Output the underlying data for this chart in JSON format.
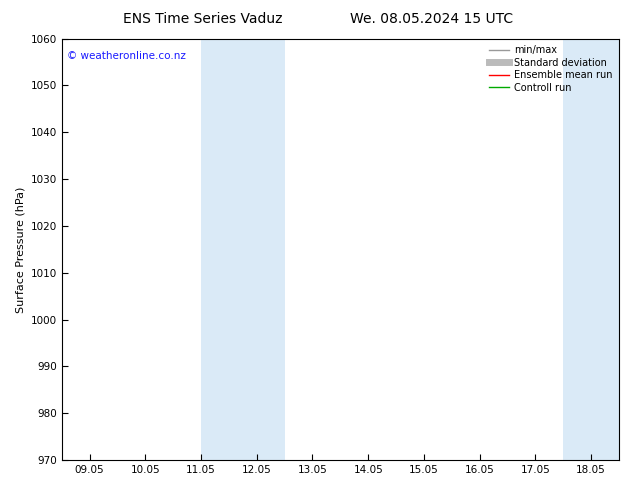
{
  "title_left": "ENS Time Series Vaduz",
  "title_right": "We. 08.05.2024 15 UTC",
  "ylabel": "Surface Pressure (hPa)",
  "ylim": [
    970,
    1060
  ],
  "yticks": [
    970,
    980,
    990,
    1000,
    1010,
    1020,
    1030,
    1040,
    1050,
    1060
  ],
  "xtick_labels": [
    "09.05",
    "10.05",
    "11.05",
    "12.05",
    "13.05",
    "14.05",
    "15.05",
    "16.05",
    "17.05",
    "18.05"
  ],
  "xtick_positions": [
    0,
    1,
    2,
    3,
    4,
    5,
    6,
    7,
    8,
    9
  ],
  "shaded_regions": [
    {
      "x_start": 2.0,
      "x_end": 2.5
    },
    {
      "x_start": 2.5,
      "x_end": 3.5
    },
    {
      "x_start": 8.5,
      "x_end": 9.0
    },
    {
      "x_start": 9.0,
      "x_end": 9.5
    }
  ],
  "watermark": "© weatheronline.co.nz",
  "watermark_color": "#1a1aff",
  "legend_entries": [
    {
      "label": "min/max",
      "color": "#999999",
      "linewidth": 1.0
    },
    {
      "label": "Standard deviation",
      "color": "#bbbbbb",
      "linewidth": 5
    },
    {
      "label": "Ensemble mean run",
      "color": "#ff0000",
      "linewidth": 1.0
    },
    {
      "label": "Controll run",
      "color": "#00aa00",
      "linewidth": 1.0
    }
  ],
  "background_color": "#ffffff",
  "shaded_color": "#daeaf7",
  "title_fontsize": 10,
  "axis_label_fontsize": 8,
  "tick_fontsize": 7.5,
  "xlim": [
    -0.5,
    9.5
  ]
}
